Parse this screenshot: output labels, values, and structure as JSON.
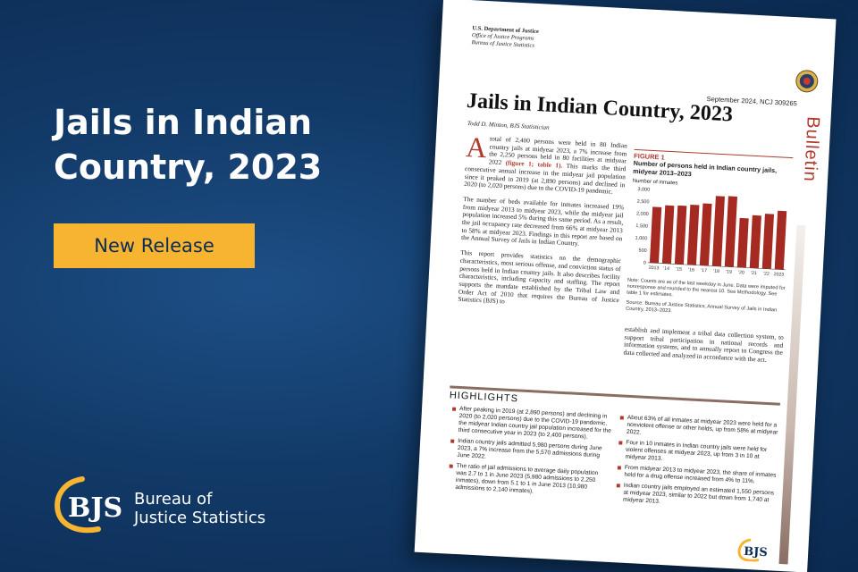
{
  "headline": "Jails in Indian Country, 2023",
  "release_button": "New Release",
  "logo": {
    "mark": "BJS",
    "line1": "Bureau of",
    "line2": "Justice Statistics",
    "colors": {
      "gold": "#f6b431",
      "navy": "#0c2c54"
    }
  },
  "report": {
    "agency": [
      "U.S. Department of Justice",
      "Office of Justice Programs",
      "Bureau of Justice Statistics"
    ],
    "date_line": "September 2024, NCJ 309265",
    "title": "Jails in Indian Country, 2023",
    "author": "Todd D. Minton, BJS Statistician",
    "series_label": "Bulletin",
    "para1_dropcap": "A",
    "para1_a": " total of 2,400 persons were held in 80 Indian country jails at midyear 2023, a 7% increase from the 2,250 persons held in 80 facilities at midyear 2022 ",
    "para1_ref": "(figure 1; table 1).",
    "para1_b": " This marks the third consecutive annual increase in the midyear jail population since it peaked in 2019 (at 2,890 persons) and declined in 2020 (to 2,020 persons) due to the COVID-19 pandemic.",
    "para2": "The number of beds available for inmates increased 19% from midyear 2013 to midyear 2023, while the midyear jail population increased 5% during this same period. As a result, the jail occupancy rate decreased from 66% at midyear 2013 to 58% at midyear 2023. Findings in this report are based on the Annual Survey of Jails in Indian Country.",
    "para3": "This report provides statistics on the demographic characteristics, most serious offense, and conviction status of persons held in Indian country jails. It also describes facility characteristics, including capacity and staffing. The report supports the mandate established by the Tribal Law and Order Act of 2010 that requires the Bureau of Justice Statistics (BJS) to",
    "col2_para": "establish and implement a tribal data collection system, to support tribal participation in national records and information systems, and to annually report to Congress the data collected and analyzed in accordance with the act.",
    "figure": {
      "label": "FIGURE 1",
      "title": "Number of persons held in Indian country jails, midyear 2013–2023",
      "ylabel": "Number of inmates",
      "note1": "Note: Counts are as of the last weekday in June. Data were imputed for nonresponse and rounded to the nearest 10. See Methodology. See table 1 for estimates.",
      "note2": "Source: Bureau of Justice Statistics, Annual Survey of Jails in Indian Country, 2013–2023."
    },
    "highlights_title": "HIGHLIGHTS",
    "highlights_left": [
      "After peaking in 2019 (at 2,890 persons) and declining in 2020 (to 2,020 persons) due to the COVID-19 pandemic, the midyear Indian country jail population increased for the third consecutive year in 2023 (to 2,400 persons).",
      "Indian country jails admitted 5,980 persons during June 2023, a 7% increase from the 5,570 admissions during June 2022.",
      "The ratio of jail admissions to average daily population was 2.7 to 1 in June 2023 (5,980 admissions to 2,250 inmates), down from 5.1 to 1 in June 2013 (10,980 admissions to 2,140 inmates)."
    ],
    "highlights_right": [
      "About 63% of all inmates at midyear 2023 were held for a nonviolent offense or other holds, up from 58% at midyear 2022.",
      "Four in 10 inmates in Indian country jails were held for violent offenses at midyear 2023, up from 3 in 10 at midyear 2013.",
      "From midyear 2013 to midyear 2023, the share of inmates held for a drug offense increased from 4% to 11%.",
      "Indian country jails employed an estimated 1,550 persons at midyear 2023, similar to 2022 but down from 1,740 at midyear 2013."
    ],
    "badge": "BJS"
  },
  "chart_data": {
    "type": "bar",
    "categories": [
      "2013",
      "'14",
      "'15",
      "'16",
      "'17",
      "'18",
      "'19",
      "'20",
      "'21",
      "'22",
      "2023"
    ],
    "values": [
      2290,
      2380,
      2400,
      2460,
      2540,
      2870,
      2890,
      2020,
      2160,
      2250,
      2400
    ],
    "ylabel": "Number of inmates",
    "ylim": [
      0,
      3000
    ],
    "yticks": [
      "0",
      "500",
      "1,000",
      "1,500",
      "2,000",
      "2,500",
      "3,000"
    ],
    "bar_color": "#a52a22",
    "grid": false
  }
}
